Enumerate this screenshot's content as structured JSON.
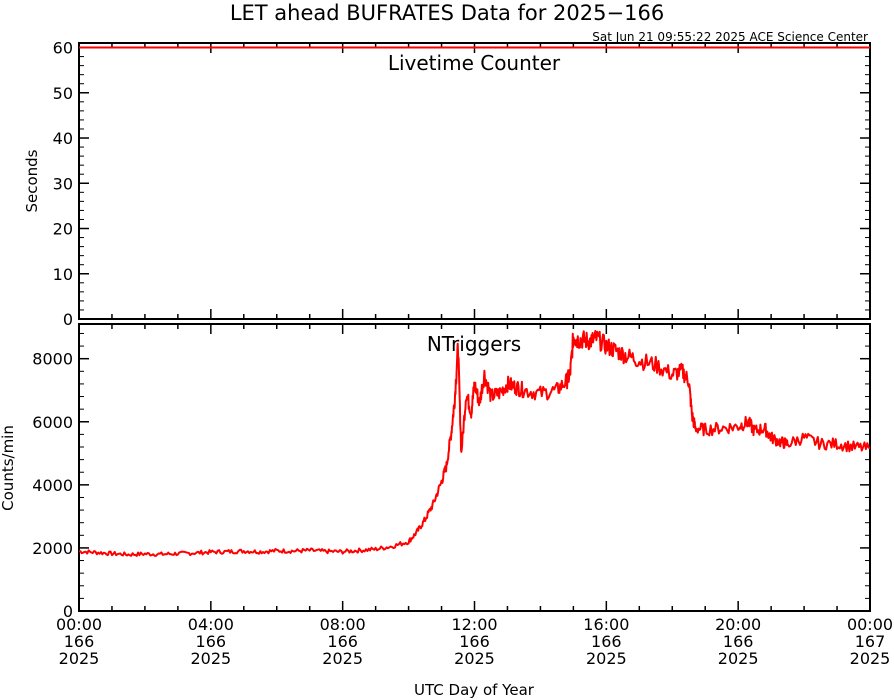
{
  "title": "LET ahead BUFRATES Data for 2025−166",
  "timestamp": "Sat Jun 21 09:55:22 2025 ACE Science Center",
  "xlabel": "UTC Day of Year",
  "colors": {
    "line": "#ff0000",
    "panel_label": "#0000ff",
    "axes": "#000000"
  },
  "chart_data": [
    {
      "type": "line",
      "panel_label": "Livetime Counter",
      "ylabel": "Seconds",
      "ylim": [
        0,
        61
      ],
      "yticks": [
        "0",
        "10",
        "20",
        "30",
        "40",
        "50",
        "60"
      ],
      "ytick_values": [
        0,
        10,
        20,
        30,
        40,
        50,
        60
      ],
      "xlim": [
        0,
        24
      ],
      "x": [
        0,
        24
      ],
      "values": [
        60,
        60
      ]
    },
    {
      "type": "line",
      "panel_label": "NTriggers",
      "ylabel": "Counts/min",
      "ylim": [
        0,
        9100
      ],
      "yticks": [
        "0",
        "2000",
        "4000",
        "6000",
        "8000"
      ],
      "ytick_values": [
        0,
        2000,
        4000,
        6000,
        8000
      ],
      "xlim": [
        0,
        24
      ],
      "x_ticks": [
        {
          "x": 0,
          "time": "00:00",
          "day": "166",
          "year": "2025"
        },
        {
          "x": 4,
          "time": "04:00",
          "day": "166",
          "year": "2025"
        },
        {
          "x": 8,
          "time": "08:00",
          "day": "166",
          "year": "2025"
        },
        {
          "x": 12,
          "time": "12:00",
          "day": "166",
          "year": "2025"
        },
        {
          "x": 16,
          "time": "16:00",
          "day": "166",
          "year": "2025"
        },
        {
          "x": 20,
          "time": "20:00",
          "day": "166",
          "year": "2025"
        },
        {
          "x": 24,
          "time": "00:00",
          "day": "167",
          "year": "2025"
        }
      ],
      "x": [
        0,
        0.5,
        1,
        1.5,
        2,
        2.5,
        3,
        3.5,
        4,
        4.5,
        5,
        5.5,
        6,
        6.5,
        7,
        7.5,
        8,
        8.5,
        9,
        9.5,
        10,
        10.25,
        10.5,
        10.75,
        11,
        11.15,
        11.3,
        11.4,
        11.5,
        11.6,
        11.75,
        11.9,
        12.0,
        12.15,
        12.3,
        12.5,
        12.75,
        13.0,
        13.25,
        13.5,
        14,
        14.5,
        14.8,
        14.9,
        15.0,
        15.1,
        15.3,
        15.5,
        15.7,
        16,
        16.3,
        16.6,
        17,
        17.5,
        18,
        18.3,
        18.5,
        18.6,
        18.7,
        19,
        19.5,
        20,
        20.3,
        20.5,
        20.8,
        21,
        21.3,
        21.5,
        22,
        22.5,
        23,
        23.5,
        24
      ],
      "values": [
        1890,
        1860,
        1820,
        1790,
        1810,
        1800,
        1820,
        1840,
        1870,
        1880,
        1900,
        1880,
        1910,
        1900,
        1920,
        1890,
        1880,
        1920,
        1960,
        2050,
        2200,
        2500,
        2900,
        3400,
        4100,
        4600,
        5700,
        6700,
        8400,
        5000,
        6900,
        6300,
        7200,
        6600,
        7500,
        6800,
        6900,
        7200,
        7100,
        7000,
        6900,
        7000,
        7300,
        7500,
        8700,
        8600,
        8600,
        8550,
        8650,
        8400,
        8250,
        8100,
        7950,
        7800,
        7500,
        7600,
        7300,
        6200,
        5800,
        5750,
        5800,
        5850,
        6000,
        5700,
        5800,
        5500,
        5350,
        5300,
        5500,
        5300,
        5300,
        5200,
        5150
      ]
    }
  ]
}
